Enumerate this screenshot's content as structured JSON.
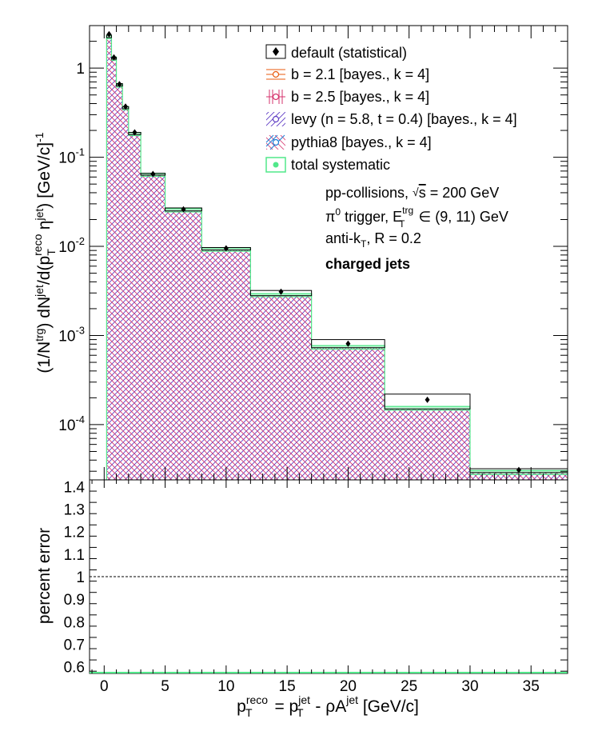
{
  "chart_data": [
    {
      "type": "histogram",
      "y_scale": "log",
      "ylabel": "(1/N^trg) dN^jet/d(p_T^reco η^jet) [GeV/c]^-1",
      "xlim": [
        -1.2,
        38
      ],
      "ylim": [
        2.4e-05,
        3.0
      ],
      "y_tick_labels": [
        "1",
        "10^-1",
        "10^-2",
        "10^-3",
        "10^-4"
      ],
      "bin_edges": [
        0.2,
        0.6,
        1.0,
        1.5,
        2.0,
        3.0,
        5.0,
        8.0,
        12.0,
        17.0,
        23.0,
        30.0,
        38.0
      ],
      "default_values": [
        2.35,
        1.32,
        0.67,
        0.37,
        0.19,
        0.066,
        0.027,
        0.0097,
        0.0032,
        0.0009,
        0.00022,
        3.2e-05
      ],
      "default_points": {
        "x": [
          0.4,
          0.8,
          1.25,
          1.75,
          2.5,
          4.0,
          6.5,
          10.0,
          14.5,
          20.0,
          26.5,
          34.0
        ],
        "y": [
          2.4,
          1.32,
          0.66,
          0.37,
          0.19,
          0.065,
          0.026,
          0.0095,
          0.0031,
          0.00081,
          0.00019,
          3.1e-05
        ]
      },
      "unfolded_values": [
        2.2,
        1.26,
        0.63,
        0.35,
        0.18,
        0.063,
        0.025,
        0.0091,
        0.0028,
        0.00073,
        0.00015,
        2.9e-05
      ],
      "systematic_band": {
        "low": [
          2.14,
          1.22,
          0.61,
          0.34,
          0.175,
          0.061,
          0.0243,
          0.0088,
          0.00272,
          0.0007,
          0.000145,
          2.75e-05
        ],
        "high": [
          2.32,
          1.33,
          0.66,
          0.37,
          0.19,
          0.066,
          0.0265,
          0.0096,
          0.00295,
          0.00077,
          0.00016,
          3.05e-05
        ]
      },
      "legend": [
        {
          "label": "default (statistical)",
          "color": "#000000",
          "style": "marker"
        },
        {
          "label": "b = 2.1 [bayes., k = 4]",
          "color": "#e8590c",
          "style": "hatch-horizontal"
        },
        {
          "label": "b = 2.5 [bayes., k = 4]",
          "color": "#d6336c",
          "style": "hatch-vertical"
        },
        {
          "label": "levy (n = 5.8, t = 0.4) [bayes., k = 4]",
          "color": "#5f3dc4",
          "style": "hatch-diagonal"
        },
        {
          "label": "pythia8 [bayes., k = 4]",
          "color": "#1c7ed6",
          "style": "hatch-antidiagonal"
        },
        {
          "label": "total systematic",
          "color": "#51e88a",
          "style": "box"
        }
      ],
      "legend_position": "top-right",
      "annotations": [
        "pp-collisions, √s = 200 GeV",
        "π⁰ trigger, E_T^trg ∈ (9, 11) GeV",
        "anti-k_T, R = 0.2",
        "charged jets"
      ]
    },
    {
      "type": "line",
      "ylabel": "percent error",
      "xlabel": "p_T^reco = p_T^jet - ρA^jet [GeV/c]",
      "xlim": [
        -1.2,
        38
      ],
      "ylim": [
        0.57,
        1.43
      ],
      "y_ticks": [
        0.6,
        0.7,
        0.8,
        0.9,
        1.0,
        1.1,
        1.2,
        1.3,
        1.4
      ],
      "y_tick_labels": [
        "0.6",
        "0.7",
        "0.8",
        "0.9",
        "1",
        "1.1",
        "1.2",
        "1.3",
        "1.4"
      ],
      "x_ticks": [
        0,
        5,
        10,
        15,
        20,
        25,
        30,
        35
      ],
      "x_tick_labels": [
        "0",
        "5",
        "10",
        "15",
        "20",
        "25",
        "30",
        "35"
      ],
      "reference_line": 1.0
    }
  ]
}
